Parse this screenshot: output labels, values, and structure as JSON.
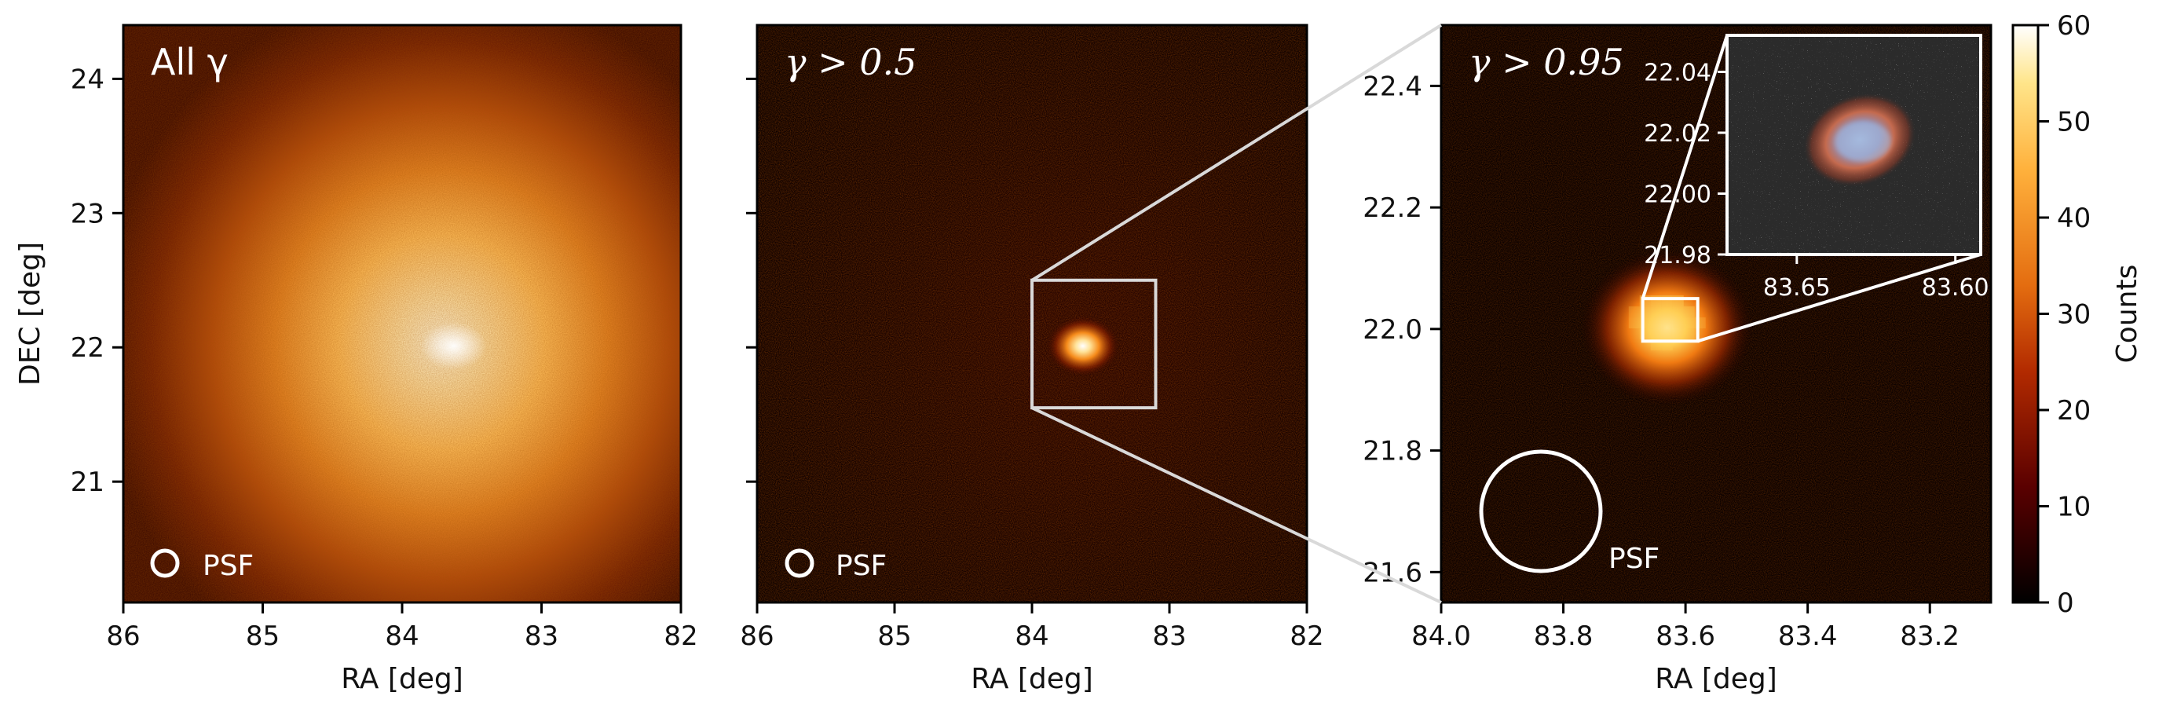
{
  "chart_data": [
    {
      "type": "heatmap",
      "panel": "left",
      "label": "All γ",
      "xlabel": "RA [deg]",
      "ylabel": "DEC [deg]",
      "xlim": [
        86,
        82
      ],
      "ylim": [
        20.1,
        24.4
      ],
      "xticks": [
        86,
        85,
        84,
        83,
        82
      ],
      "xtick_labels": [
        "86",
        "85",
        "84",
        "83",
        "82"
      ],
      "yticks": [
        24,
        23,
        22,
        21
      ],
      "ytick_labels": [
        "24",
        "23",
        "22",
        "21"
      ],
      "source_position": [
        83.63,
        22.01
      ],
      "psf_label": "PSF"
    },
    {
      "type": "heatmap",
      "panel": "middle",
      "label": "γ > 0.5",
      "xlabel": "RA [deg]",
      "xlim": [
        86,
        82
      ],
      "ylim": [
        20.1,
        24.4
      ],
      "xticks": [
        86,
        85,
        84,
        83,
        82
      ],
      "xtick_labels": [
        "86",
        "85",
        "84",
        "83",
        "82"
      ],
      "yticks": [
        24,
        23,
        22,
        21
      ],
      "source_position": [
        83.63,
        22.01
      ],
      "zoom_box": {
        "ra": [
          84.0,
          83.1
        ],
        "dec": [
          21.55,
          22.5
        ]
      },
      "psf_label": "PSF"
    },
    {
      "type": "heatmap",
      "panel": "right",
      "label": "γ > 0.95",
      "xlabel": "RA [deg]",
      "xlim": [
        84.0,
        83.1
      ],
      "ylim": [
        21.55,
        22.5
      ],
      "xticks": [
        84.0,
        83.8,
        83.6,
        83.4,
        83.2
      ],
      "xtick_labels": [
        "84.0",
        "83.8",
        "83.6",
        "83.4",
        "83.2"
      ],
      "yticks": [
        22.4,
        22.2,
        22.0,
        21.8,
        21.6
      ],
      "ytick_labels": [
        "22.4",
        "22.2",
        "22.0",
        "21.8",
        "21.6"
      ],
      "source_position": [
        83.63,
        22.01
      ],
      "zoom_box": {
        "ra": [
          83.67,
          83.58
        ],
        "dec": [
          21.98,
          22.05
        ]
      },
      "psf_label": "PSF",
      "inset": {
        "xticks": [
          83.65,
          83.6
        ],
        "xtick_labels": [
          "83.65",
          "83.60"
        ],
        "yticks": [
          22.04,
          22.02,
          22.0,
          21.98
        ],
        "ytick_labels": [
          "22.04",
          "22.02",
          "22.00",
          "21.98"
        ]
      }
    }
  ],
  "colorbar": {
    "label": "Counts",
    "range": [
      0,
      60
    ],
    "ticks": [
      0,
      10,
      20,
      30,
      40,
      50,
      60
    ],
    "tick_labels": [
      "0",
      "10",
      "20",
      "30",
      "40",
      "50",
      "60"
    ],
    "colormap": "afmhot"
  },
  "colors": {
    "zoom_line": "#d9d9d9",
    "psf_circle": "#ffffff",
    "frame": "#000000"
  }
}
